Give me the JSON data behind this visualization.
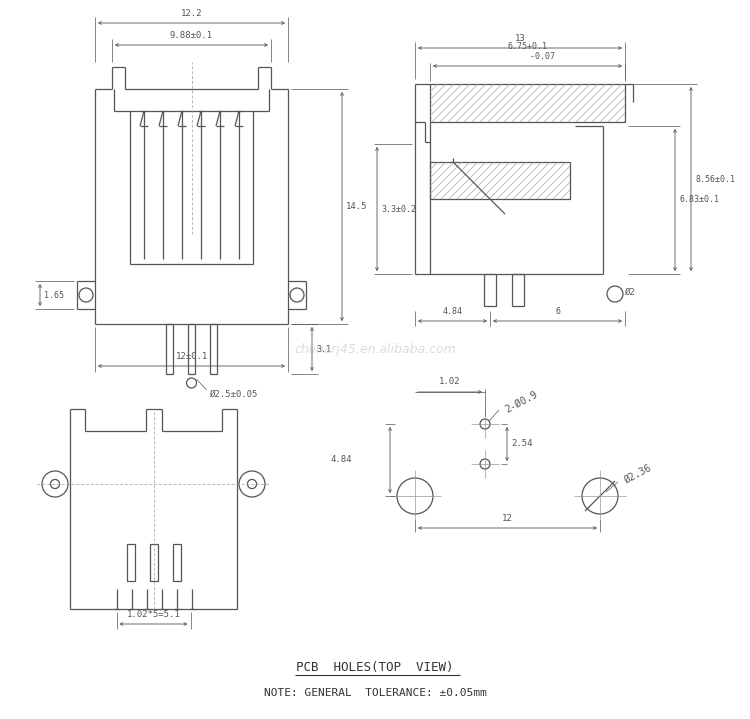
{
  "bg_color": "#ffffff",
  "line_color": "#555555",
  "dim_color": "#555555",
  "watermark": "chiinarj45.en.alibaba.com",
  "watermark_color": "#cccccc",
  "bottom_label1": "PCB  HOLES(TOP  VIEW)",
  "bottom_label2": "NOTE: GENERAL  TOLERANCE: ±0.05mm",
  "dims": {
    "top_width": "12.2",
    "inner_width": "9.88±0.1",
    "height_main": "14.5",
    "bottom_width": "12±0.1",
    "pin_dia": "Ø2.5±0.05",
    "height_small": "3.1",
    "left_height": "1.65",
    "right_top_width": "13",
    "right_inner_width": "6.75+0.1\n      -0.07",
    "right_height1": "6.83±0.1",
    "right_height2": "8.56±0.1",
    "right_side_height": "3.3±0.2",
    "right_dia": "Ø2",
    "right_dim1": "4.84",
    "right_dim2": "6",
    "pcb_dim1": "1.02",
    "pcb_dim2": "2-Ø0.9",
    "pcb_dim3": "2.54",
    "pcb_dim4": "4.84",
    "pcb_dim5": "12",
    "pcb_dia": "Ø2.36",
    "bottom_pin_dim": "1.02*5=5.1"
  }
}
